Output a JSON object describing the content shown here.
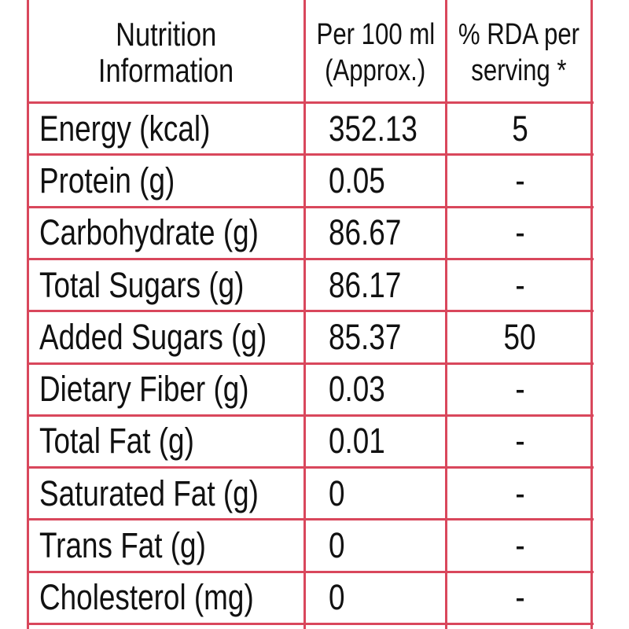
{
  "header": {
    "col_nutrient": [
      "Nutrition",
      "Information"
    ],
    "col_per100": [
      "Per 100 ml",
      "(Approx.)"
    ],
    "col_rda": [
      "% RDA per",
      "serving *"
    ]
  },
  "rows": [
    {
      "name": "Energy (kcal)",
      "value": "352.13",
      "rda": "5"
    },
    {
      "name": "Protein (g)",
      "value": "0.05",
      "rda": "-"
    },
    {
      "name": "Carbohydrate (g)",
      "value": "86.67",
      "rda": "-"
    },
    {
      "name": "Total Sugars (g)",
      "value": "86.17",
      "rda": "-"
    },
    {
      "name": "Added Sugars (g)",
      "value": "85.37",
      "rda": "50"
    },
    {
      "name": "Dietary Fiber (g)",
      "value": "0.03",
      "rda": "-"
    },
    {
      "name": "Total Fat (g)",
      "value": "0.01",
      "rda": "-"
    },
    {
      "name": "Saturated Fat (g)",
      "value": "0",
      "rda": "-"
    },
    {
      "name": "Trans Fat (g)",
      "value": "0",
      "rda": "-"
    },
    {
      "name": "Cholesterol (mg)",
      "value": "0",
      "rda": "-"
    }
  ],
  "colors": {
    "border": "#d9475c",
    "text": "#111111"
  }
}
